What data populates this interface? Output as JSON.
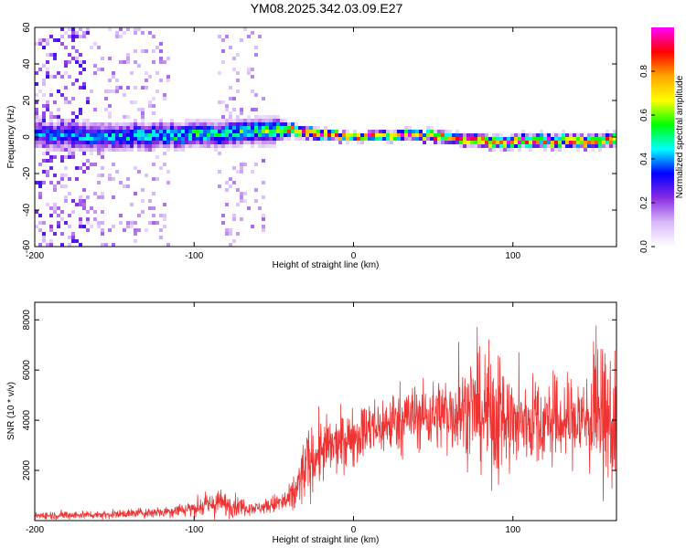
{
  "title": "YM08.2025.342.03.09.E27",
  "chart_data": [
    {
      "type": "heatmap",
      "xlabel": "Height of straight line (km)",
      "ylabel": "Frequency (Hz)",
      "xlim": [
        -200,
        165
      ],
      "ylim": [
        -60,
        60
      ],
      "xticks": [
        -200,
        -100,
        0,
        100
      ],
      "yticks": [
        -60,
        -40,
        -20,
        0,
        20,
        40,
        60
      ],
      "grid": false,
      "colorbar": {
        "label": "Normalized spectral amplitude",
        "range": [
          0,
          1
        ],
        "ticks": [
          0.0,
          0.2,
          0.4,
          0.6,
          0.8
        ],
        "colormap": [
          "#ffffff",
          "#d8b8f8",
          "#8a2be2",
          "#0000ff",
          "#00ffff",
          "#00ff00",
          "#ffff00",
          "#ffa500",
          "#ff0000",
          "#ff00ff"
        ]
      },
      "signal_band": {
        "center_hz": [
          [
            -185,
            1
          ],
          [
            -150,
            0
          ],
          [
            -100,
            1
          ],
          [
            -60,
            3
          ],
          [
            -40,
            4
          ],
          [
            -20,
            1
          ],
          [
            0,
            0
          ],
          [
            40,
            1
          ],
          [
            80,
            -2
          ],
          [
            100,
            -3
          ],
          [
            130,
            -2
          ],
          [
            150,
            -3
          ],
          [
            165,
            -1
          ]
        ],
        "half_width_hz": [
          [
            -185,
            7
          ],
          [
            -100,
            6
          ],
          [
            -50,
            6
          ],
          [
            -40,
            3
          ],
          [
            0,
            2
          ],
          [
            100,
            3
          ],
          [
            165,
            3
          ]
        ],
        "amplitude": [
          [
            -185,
            0.35
          ],
          [
            -120,
            0.45
          ],
          [
            -60,
            0.5
          ],
          [
            -45,
            0.6
          ],
          [
            -35,
            0.75
          ],
          [
            0,
            0.85
          ],
          [
            150,
            0.8
          ],
          [
            165,
            0.75
          ]
        ]
      },
      "noise_regions_km": [
        [
          -200,
          -115
        ],
        [
          -85,
          -55
        ]
      ]
    },
    {
      "type": "line",
      "xlabel": "Height of straight line (km)",
      "ylabel": "SNR (10 * v/v)",
      "xlim": [
        -200,
        165
      ],
      "ylim": [
        0,
        8700
      ],
      "xticks": [
        -200,
        -100,
        0,
        100
      ],
      "yticks": [
        2000,
        4000,
        6000,
        8000
      ],
      "grid": false,
      "series": [
        {
          "color": "#ee3333",
          "envelope_x": [
            -200,
            -150,
            -120,
            -100,
            -85,
            -75,
            -60,
            -40,
            -35,
            -30,
            -20,
            -10,
            0,
            20,
            30,
            50,
            70,
            80,
            90,
            100,
            110,
            120,
            140,
            150,
            160,
            165
          ],
          "envelope_mean": [
            200,
            250,
            350,
            500,
            700,
            600,
            500,
            800,
            1300,
            2200,
            2800,
            3000,
            3400,
            3800,
            4100,
            4200,
            4400,
            4300,
            4200,
            3800,
            4000,
            3900,
            4000,
            4100,
            3900,
            3600
          ],
          "envelope_spread": [
            150,
            150,
            200,
            300,
            500,
            400,
            200,
            500,
            1000,
            1200,
            1200,
            1000,
            1000,
            1100,
            1200,
            1200,
            1600,
            2000,
            2400,
            1800,
            1600,
            1500,
            1600,
            2200,
            2600,
            2500
          ]
        }
      ]
    }
  ]
}
